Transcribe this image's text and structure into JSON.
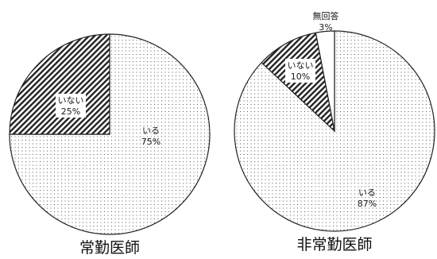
{
  "chart_data": [
    {
      "type": "pie",
      "title": "常勤医師",
      "slices": [
        {
          "label": "いる",
          "value": 75,
          "value_label": "75%",
          "pattern": "dots"
        },
        {
          "label": "いない",
          "value": 25,
          "value_label": "25%",
          "pattern": "hatch"
        }
      ]
    },
    {
      "type": "pie",
      "title": "非常勤医師",
      "slices": [
        {
          "label": "いる",
          "value": 87,
          "value_label": "87%",
          "pattern": "dots"
        },
        {
          "label": "いない",
          "value": 10,
          "value_label": "10%",
          "pattern": "hatch"
        },
        {
          "label": "無回答",
          "value": 3,
          "value_label": "3%",
          "pattern": "blank"
        }
      ]
    }
  ]
}
